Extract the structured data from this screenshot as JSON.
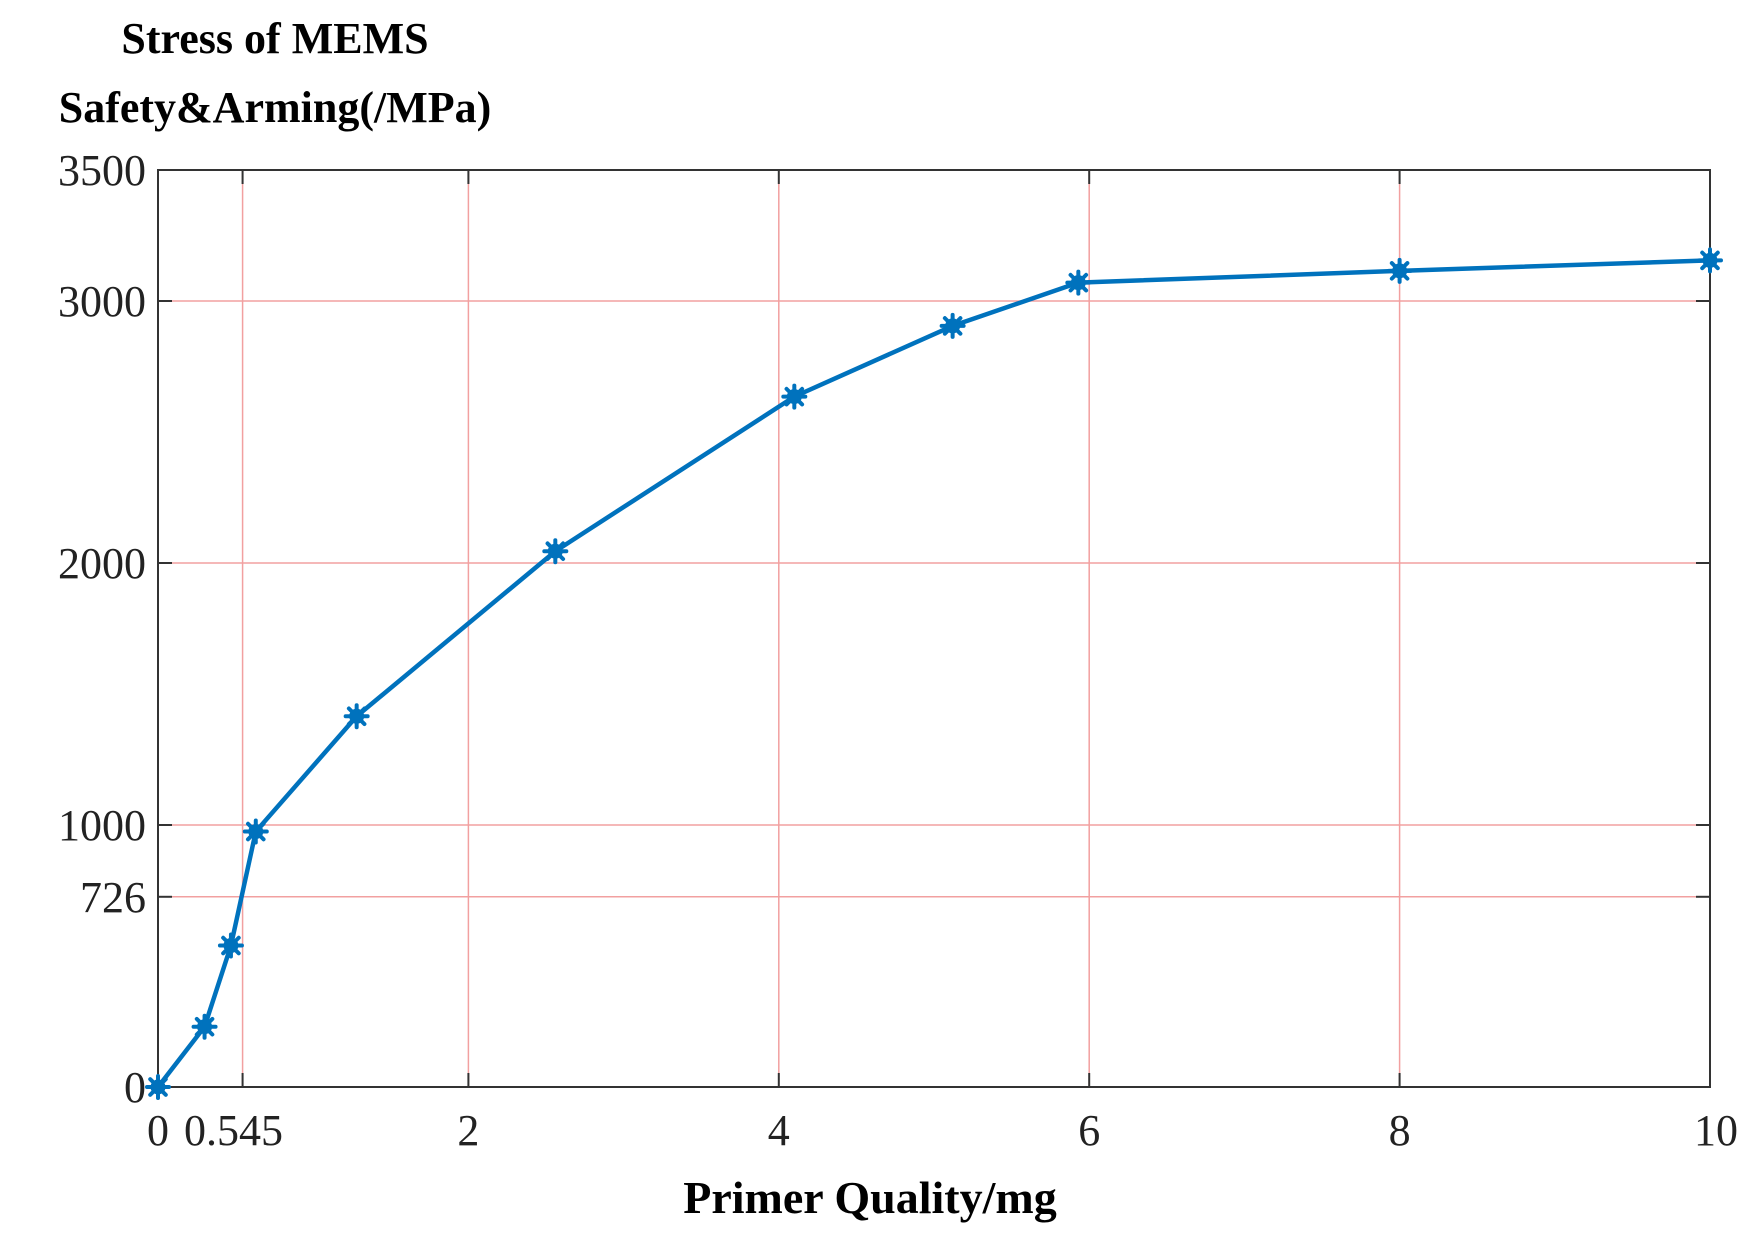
{
  "chart_data": {
    "type": "line",
    "title": "",
    "ylabel_lines": [
      "Stress of MEMS",
      "Safety&Arming(/MPa)"
    ],
    "xlabel": "Primer Quality/mg",
    "xlim": [
      0,
      10
    ],
    "ylim": [
      0,
      3500
    ],
    "x_ticks": [
      0,
      0.545,
      2,
      4,
      6,
      8,
      10
    ],
    "x_tick_labels": [
      "0",
      "0.545",
      "2",
      "4",
      "6",
      "8",
      "10"
    ],
    "y_ticks": [
      0,
      726,
      1000,
      2000,
      3000,
      3500
    ],
    "y_tick_labels": [
      "0",
      "726",
      "1000",
      "2000",
      "3000",
      "3500"
    ],
    "grid": true,
    "grid_color": "#f2a0a0",
    "series": [
      {
        "color": "#0072bd",
        "marker": "star",
        "x": [
          0,
          0.3,
          0.47,
          0.63,
          1.28,
          2.56,
          4.1,
          5.12,
          5.93,
          8.0,
          10.0
        ],
        "y": [
          0,
          230,
          540,
          975,
          1415,
          2045,
          2635,
          2905,
          3070,
          3115,
          3155
        ]
      }
    ]
  }
}
